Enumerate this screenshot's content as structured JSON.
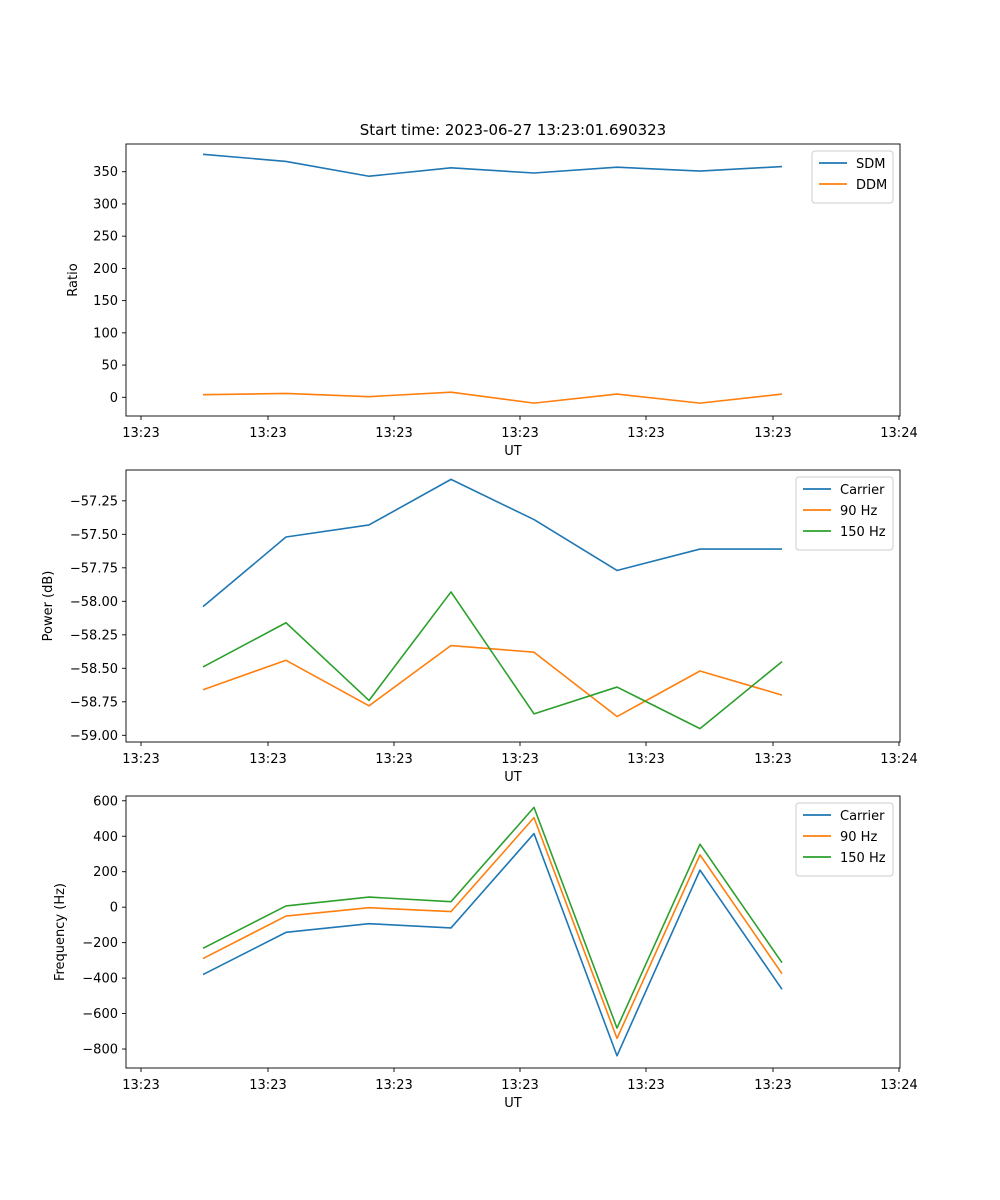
{
  "chart_data": [
    {
      "type": "line",
      "title": "Start time: 2023-06-27 13:23:01.690323",
      "xlabel": "UT",
      "ylabel": "Ratio",
      "x_tick_labels": [
        "13:23",
        "13:23",
        "13:23",
        "13:23",
        "13:23",
        "13:23",
        "13:24"
      ],
      "y_ticks": [
        0,
        50,
        100,
        150,
        200,
        250,
        300,
        350
      ],
      "ylim": [
        -29,
        393
      ],
      "legend": "top-right",
      "grid": false,
      "series": [
        {
          "name": "SDM",
          "color": "#1f77b4",
          "values": [
            377,
            366,
            343,
            356,
            348,
            357,
            351,
            358
          ]
        },
        {
          "name": "DDM",
          "color": "#ff7f0e",
          "values": [
            4,
            6,
            1,
            8,
            -9,
            5,
            -9,
            5
          ]
        }
      ]
    },
    {
      "type": "line",
      "title": "",
      "xlabel": "UT",
      "ylabel": "Power (dB)",
      "x_tick_labels": [
        "13:23",
        "13:23",
        "13:23",
        "13:23",
        "13:23",
        "13:23",
        "13:24"
      ],
      "y_ticks": [
        -59.0,
        -58.75,
        -58.5,
        -58.25,
        -58.0,
        -57.75,
        -57.5,
        -57.25
      ],
      "y_tick_labels": [
        "−59.00",
        "−58.75",
        "−58.50",
        "−58.25",
        "−58.00",
        "−57.75",
        "−57.50",
        "−57.25"
      ],
      "ylim": [
        -59.05,
        -57.02
      ],
      "legend": "top-right",
      "grid": false,
      "series": [
        {
          "name": "Carrier",
          "color": "#1f77b4",
          "values": [
            -58.04,
            -57.52,
            -57.43,
            -57.09,
            -57.39,
            -57.77,
            -57.61,
            -57.61
          ]
        },
        {
          "name": "90 Hz",
          "color": "#ff7f0e",
          "values": [
            -58.66,
            -58.44,
            -58.78,
            -58.33,
            -58.38,
            -58.86,
            -58.52,
            -58.7
          ]
        },
        {
          "name": "150 Hz",
          "color": "#2ca02c",
          "values": [
            -58.49,
            -58.16,
            -58.74,
            -57.93,
            -58.84,
            -58.64,
            -58.95,
            -58.45
          ]
        }
      ]
    },
    {
      "type": "line",
      "title": "",
      "xlabel": "UT",
      "ylabel": "Frequency (Hz)",
      "x_tick_labels": [
        "13:23",
        "13:23",
        "13:23",
        "13:23",
        "13:23",
        "13:23",
        "13:24"
      ],
      "y_ticks": [
        -800,
        -600,
        -400,
        -200,
        0,
        200,
        400,
        600
      ],
      "y_tick_labels": [
        "−800",
        "−600",
        "−400",
        "−200",
        "0",
        "200",
        "400",
        "600"
      ],
      "ylim": [
        -907,
        627
      ],
      "legend": "top-right",
      "grid": false,
      "series": [
        {
          "name": "Carrier",
          "color": "#1f77b4",
          "values": [
            -380,
            -142,
            -93,
            -117,
            415,
            -838,
            209,
            -463
          ]
        },
        {
          "name": "90 Hz",
          "color": "#ff7f0e",
          "values": [
            -290,
            -50,
            -3,
            -25,
            505,
            -740,
            295,
            -375
          ]
        },
        {
          "name": "150 Hz",
          "color": "#2ca02c",
          "values": [
            -232,
            7,
            57,
            31,
            563,
            -682,
            355,
            -313
          ]
        }
      ]
    }
  ]
}
